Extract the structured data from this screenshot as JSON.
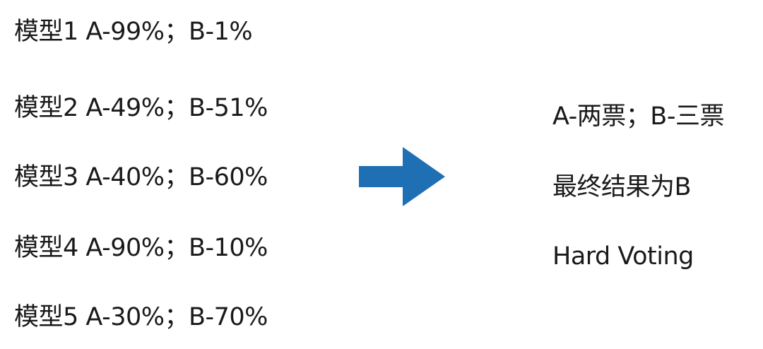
{
  "models": [
    {
      "text": "模型1 A-99%；B-1%"
    },
    {
      "text": "模型2 A-49%；B-51%"
    },
    {
      "text": "模型3 A-40%；B-60%"
    },
    {
      "text": "模型4 A-90%；B-10%"
    },
    {
      "text": "模型5 A-30%；B-70%"
    }
  ],
  "arrow": {
    "icon": "right-arrow-icon",
    "color": "#1f6fb4"
  },
  "results": {
    "votes": "A-两票；B-三票",
    "final": "最终结果为B",
    "method": "Hard Voting"
  }
}
